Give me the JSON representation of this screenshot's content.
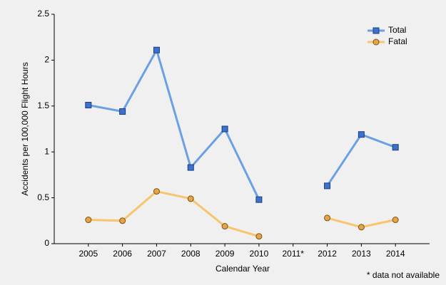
{
  "chart_data": {
    "type": "line",
    "x_label": "Calendar Year",
    "y_label": "Accidents per 100,000 Flight Hours",
    "note": "* data not available",
    "categories": [
      "2005",
      "2006",
      "2007",
      "2008",
      "2009",
      "2010",
      "2011*",
      "2012",
      "2013",
      "2014"
    ],
    "series": [
      {
        "name": "Total",
        "color": "#6ca0e4",
        "marker": "square",
        "marker_color": "#3d72cc",
        "values": [
          1.51,
          1.44,
          2.11,
          0.83,
          1.25,
          0.48,
          null,
          0.63,
          1.19,
          1.05
        ]
      },
      {
        "name": "Fatal",
        "color": "#f8c46c",
        "marker": "circle",
        "marker_color": "#e6a448",
        "values": [
          0.26,
          0.25,
          0.57,
          0.49,
          0.19,
          0.08,
          null,
          0.28,
          0.18,
          0.26
        ]
      }
    ],
    "ylim": [
      0,
      2.5
    ],
    "yticks": [
      0,
      0.5,
      1,
      1.5,
      2,
      2.5
    ],
    "legend": "top-right"
  }
}
